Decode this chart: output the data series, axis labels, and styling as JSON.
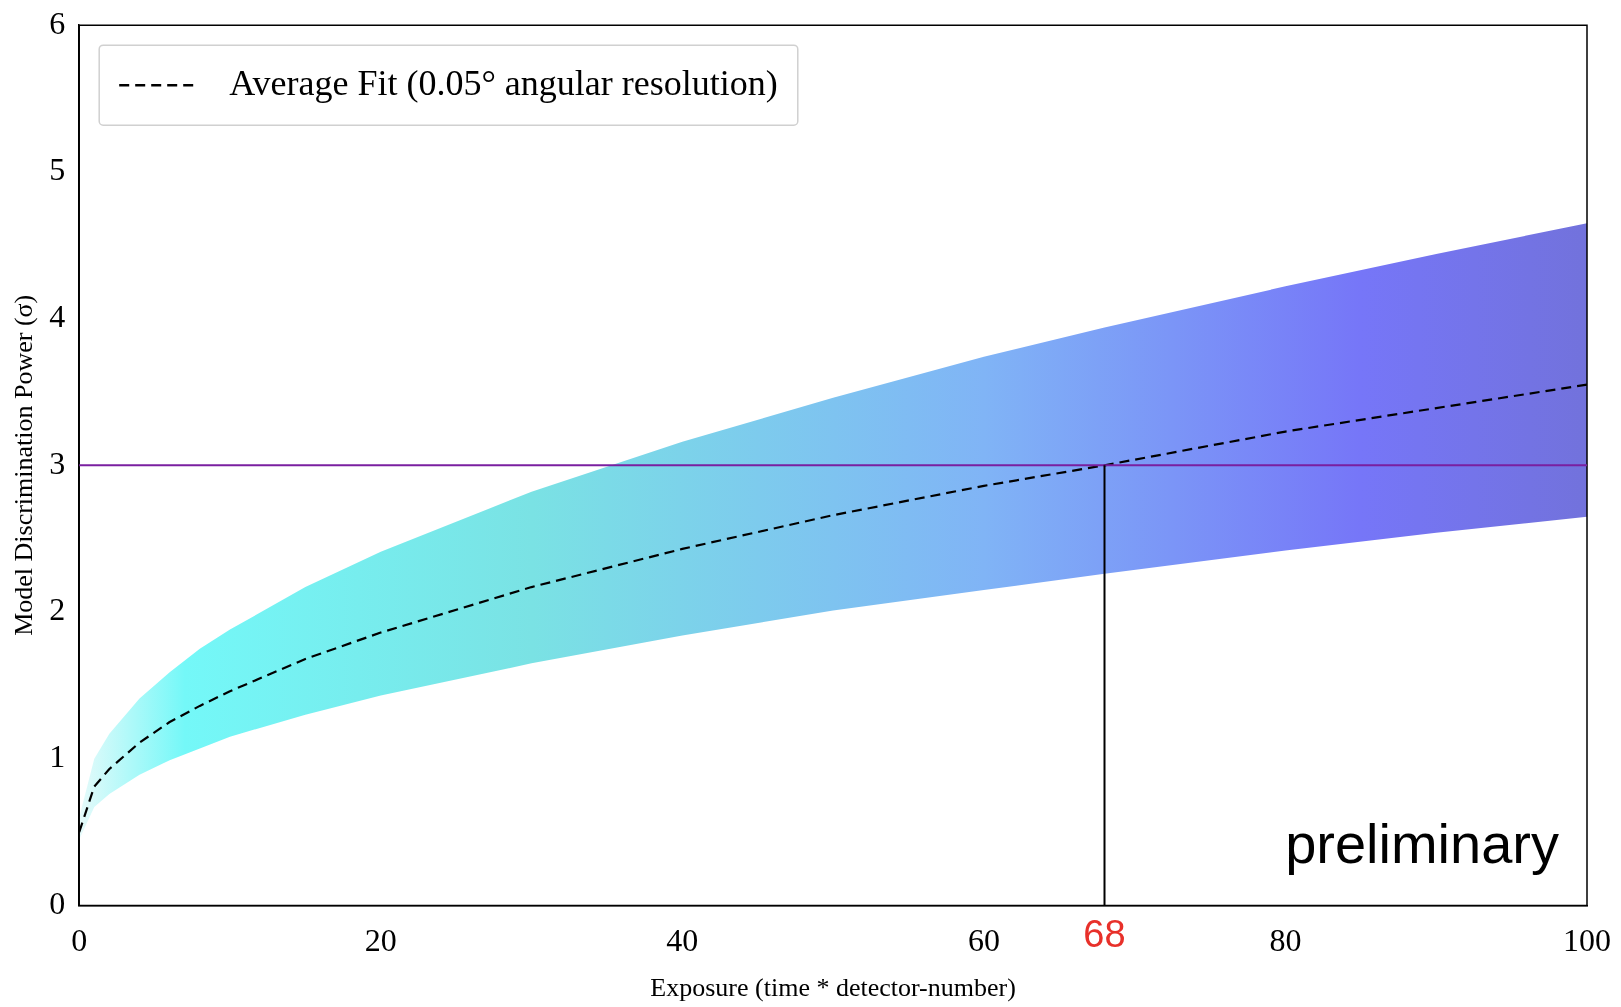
{
  "chart_data": {
    "type": "line",
    "xlabel": "Exposure (time * detector-number)",
    "ylabel": "Model Discrimination Power (σ)",
    "x": [
      0,
      1,
      2,
      4,
      6,
      8,
      10,
      15,
      20,
      30,
      40,
      50,
      60,
      68,
      80,
      90,
      100
    ],
    "series": [
      {
        "name": "Average Fit (0.05° angular resolution)",
        "color": "#000000",
        "line_style": "dashed",
        "values": [
          0.5,
          0.81,
          0.93,
          1.11,
          1.25,
          1.36,
          1.46,
          1.68,
          1.86,
          2.17,
          2.43,
          2.66,
          2.86,
          3.0,
          3.23,
          3.39,
          3.55
        ],
        "lower": [
          0.45,
          0.67,
          0.76,
          0.89,
          0.99,
          1.07,
          1.15,
          1.3,
          1.43,
          1.65,
          1.84,
          2.01,
          2.15,
          2.26,
          2.42,
          2.54,
          2.65
        ],
        "upper": [
          0.6,
          1.0,
          1.17,
          1.41,
          1.59,
          1.75,
          1.88,
          2.17,
          2.41,
          2.82,
          3.16,
          3.46,
          3.74,
          3.94,
          4.22,
          4.44,
          4.65
        ]
      }
    ],
    "xlim": [
      0,
      100
    ],
    "ylim": [
      0,
      6
    ],
    "xticks": [
      0,
      20,
      40,
      60,
      80,
      100
    ],
    "yticks": [
      0,
      1,
      2,
      3,
      4,
      5,
      6
    ],
    "ref_lines": [
      {
        "axis": "y",
        "value": 3,
        "color": "#7a1fa0"
      },
      {
        "axis": "x",
        "value": 68,
        "color": "#000000"
      }
    ],
    "annotations": [
      "preliminary",
      {
        "text": "68",
        "x": 68,
        "y": 0
      }
    ],
    "legend": "top left",
    "grid": false,
    "marker": "none"
  }
}
